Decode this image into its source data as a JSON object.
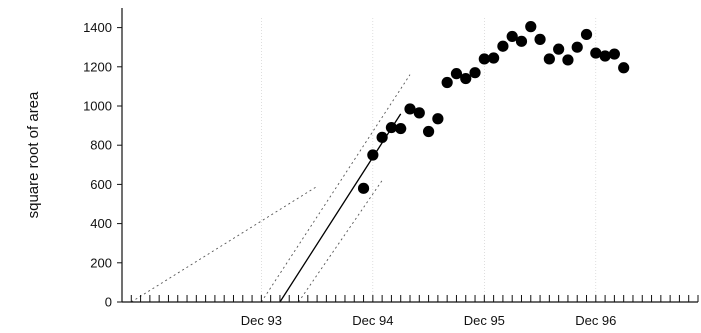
{
  "chart_data": {
    "type": "scatter",
    "title": "",
    "xlabel": "",
    "ylabel": "square root of area",
    "x_unit": "months",
    "xlim": [
      "1992-09",
      "1997-11"
    ],
    "ylim": [
      0,
      1500
    ],
    "y_ticks": [
      0,
      200,
      400,
      600,
      800,
      1000,
      1200,
      1400
    ],
    "x_tick_labels": [
      {
        "date": "1993-12",
        "label": "Dec 93"
      },
      {
        "date": "1994-12",
        "label": "Dec 94"
      },
      {
        "date": "1995-12",
        "label": "Dec 95"
      },
      {
        "date": "1996-12",
        "label": "Dec 96"
      }
    ],
    "grid": "vertical-dotted",
    "legend": "none",
    "series": [
      {
        "points": [
          {
            "x": "1994-11",
            "y": 580
          },
          {
            "x": "1994-12",
            "y": 750
          },
          {
            "x": "1995-01",
            "y": 840
          },
          {
            "x": "1995-02",
            "y": 890
          },
          {
            "x": "1995-03",
            "y": 885
          },
          {
            "x": "1995-04",
            "y": 985
          },
          {
            "x": "1995-05",
            "y": 965
          },
          {
            "x": "1995-06",
            "y": 870
          },
          {
            "x": "1995-07",
            "y": 935
          },
          {
            "x": "1995-08",
            "y": 1120
          },
          {
            "x": "1995-09",
            "y": 1165
          },
          {
            "x": "1995-10",
            "y": 1140
          },
          {
            "x": "1995-11",
            "y": 1170
          },
          {
            "x": "1995-12",
            "y": 1240
          },
          {
            "x": "1996-01",
            "y": 1245
          },
          {
            "x": "1996-02",
            "y": 1305
          },
          {
            "x": "1996-03",
            "y": 1355
          },
          {
            "x": "1996-04",
            "y": 1330
          },
          {
            "x": "1996-05",
            "y": 1405
          },
          {
            "x": "1996-06",
            "y": 1340
          },
          {
            "x": "1996-07",
            "y": 1240
          },
          {
            "x": "1996-08",
            "y": 1290
          },
          {
            "x": "1996-09",
            "y": 1235
          },
          {
            "x": "1996-10",
            "y": 1300
          },
          {
            "x": "1996-11",
            "y": 1365
          },
          {
            "x": "1996-12",
            "y": 1270
          },
          {
            "x": "1997-01",
            "y": 1255
          },
          {
            "x": "1997-02",
            "y": 1265
          },
          {
            "x": "1997-03",
            "y": 1195
          }
        ]
      }
    ],
    "lines": [
      {
        "style": "solid",
        "from": {
          "x": "1994-02",
          "y": 0
        },
        "to": {
          "x": "1995-03",
          "y": 960
        }
      },
      {
        "style": "dotted",
        "from": {
          "x": "1992-10",
          "y": 0
        },
        "to": {
          "x": "1994-06",
          "y": 590
        }
      },
      {
        "style": "dotted",
        "from": {
          "x": "1993-12",
          "y": 0
        },
        "to": {
          "x": "1995-04",
          "y": 1160
        }
      },
      {
        "style": "dotted",
        "from": {
          "x": "1994-04",
          "y": 0
        },
        "to": {
          "x": "1995-01",
          "y": 620
        }
      }
    ],
    "colors": {
      "points": "#000000",
      "fit": "#000000",
      "ci": "#555555"
    }
  }
}
